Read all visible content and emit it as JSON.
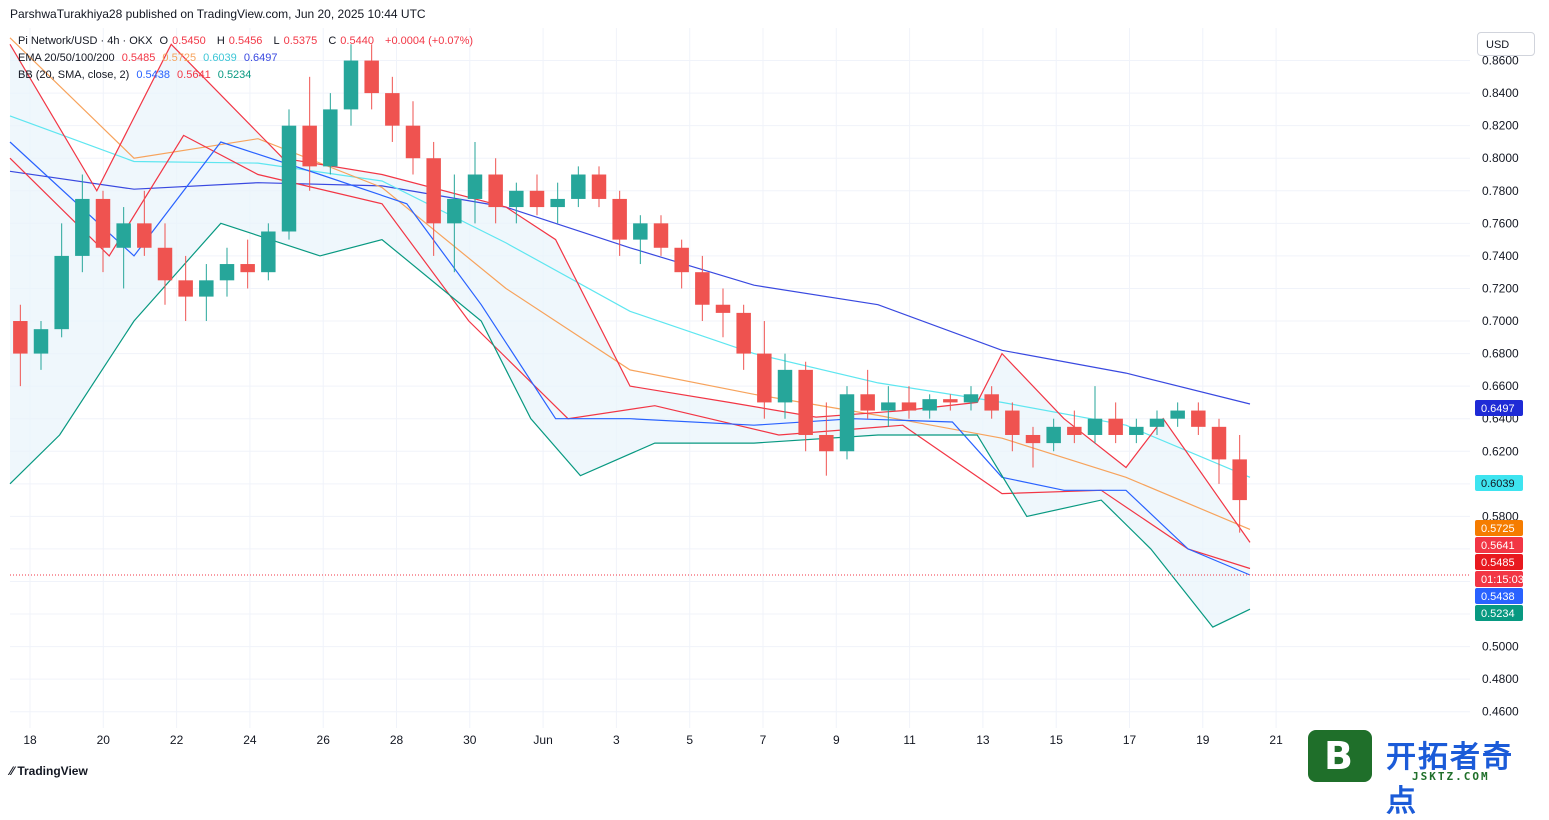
{
  "header": {
    "attribution": "ParshwaTurakhiya28 published on TradingView.com, Jun 20, 2025 10:44 UTC"
  },
  "legend": {
    "symbol": {
      "name": "Pi Network/USD · 4h · OKX",
      "o_label": "O",
      "o": "0.5450",
      "h_label": "H",
      "h": "0.5456",
      "l_label": "L",
      "l": "0.5375",
      "c_label": "C",
      "c": "0.5440",
      "change": "+0.0004 (+0.07%)"
    },
    "ema": {
      "label": "EMA 20/50/100/200",
      "v20": "0.5485",
      "v50": "0.5725",
      "v100": "0.6039",
      "v200": "0.6497"
    },
    "bb": {
      "label": "BB (20, SMA, close, 2)",
      "mid": "0.5438",
      "upper": "0.5641",
      "lower": "0.5234"
    }
  },
  "currency_label": "USD",
  "price_tags": {
    "ema200": "0.6497",
    "ema100": "0.6039",
    "ema50": "0.5725",
    "bb_upper": "0.5641",
    "ema20": "0.5485",
    "countdown": "01:15:03",
    "bb_mid": "0.5438",
    "bb_lower": "0.5234"
  },
  "footer": {
    "brand": "TradingView"
  },
  "watermark": {
    "title": "开拓者奇点",
    "sub": "JSKTZ.COM",
    "icon_letter": "B"
  },
  "colors": {
    "up": "#26a69a",
    "down": "#ef5350",
    "ema20": "#f23645",
    "ema50": "#f7a35c",
    "ema100": "#5ee6f0",
    "ema200": "#3949e0",
    "bb_mid": "#2962ff",
    "bb_upper": "#f23645",
    "bb_lower": "#089981",
    "bb_fill": "#e8f4fb"
  },
  "chart_data": {
    "type": "candlestick",
    "title": "Pi Network/USD · 4h · OKX",
    "y_ticks": [
      "0.8600",
      "0.8400",
      "0.8200",
      "0.8000",
      "0.7800",
      "0.7600",
      "0.7400",
      "0.7200",
      "0.7000",
      "0.6800",
      "0.6600",
      "0.6400",
      "0.6200",
      "0.5800",
      "0.5000",
      "0.4800",
      "0.4600"
    ],
    "x_ticks": [
      "18",
      "20",
      "22",
      "24",
      "26",
      "28",
      "30",
      "Jun",
      "3",
      "5",
      "7",
      "9",
      "11",
      "13",
      "15",
      "17",
      "19",
      "21"
    ],
    "ylim": [
      0.45,
      0.88
    ],
    "current_price": 0.544,
    "ohlc": [
      [
        0.7,
        0.71,
        0.66,
        0.68
      ],
      [
        0.68,
        0.7,
        0.67,
        0.695
      ],
      [
        0.695,
        0.76,
        0.69,
        0.74
      ],
      [
        0.74,
        0.79,
        0.73,
        0.775
      ],
      [
        0.775,
        0.78,
        0.73,
        0.745
      ],
      [
        0.745,
        0.77,
        0.72,
        0.76
      ],
      [
        0.76,
        0.78,
        0.74,
        0.745
      ],
      [
        0.745,
        0.76,
        0.71,
        0.725
      ],
      [
        0.725,
        0.74,
        0.7,
        0.715
      ],
      [
        0.715,
        0.735,
        0.7,
        0.725
      ],
      [
        0.725,
        0.745,
        0.715,
        0.735
      ],
      [
        0.735,
        0.75,
        0.72,
        0.73
      ],
      [
        0.73,
        0.76,
        0.725,
        0.755
      ],
      [
        0.755,
        0.83,
        0.75,
        0.82
      ],
      [
        0.82,
        0.85,
        0.78,
        0.795
      ],
      [
        0.795,
        0.84,
        0.79,
        0.83
      ],
      [
        0.83,
        0.87,
        0.82,
        0.86
      ],
      [
        0.86,
        0.87,
        0.83,
        0.84
      ],
      [
        0.84,
        0.85,
        0.81,
        0.82
      ],
      [
        0.82,
        0.835,
        0.79,
        0.8
      ],
      [
        0.8,
        0.81,
        0.74,
        0.76
      ],
      [
        0.76,
        0.79,
        0.73,
        0.775
      ],
      [
        0.775,
        0.81,
        0.76,
        0.79
      ],
      [
        0.79,
        0.8,
        0.76,
        0.77
      ],
      [
        0.77,
        0.785,
        0.76,
        0.78
      ],
      [
        0.78,
        0.79,
        0.765,
        0.77
      ],
      [
        0.77,
        0.785,
        0.76,
        0.775
      ],
      [
        0.775,
        0.795,
        0.77,
        0.79
      ],
      [
        0.79,
        0.795,
        0.77,
        0.775
      ],
      [
        0.775,
        0.78,
        0.74,
        0.75
      ],
      [
        0.75,
        0.765,
        0.735,
        0.76
      ],
      [
        0.76,
        0.765,
        0.74,
        0.745
      ],
      [
        0.745,
        0.75,
        0.72,
        0.73
      ],
      [
        0.73,
        0.74,
        0.7,
        0.71
      ],
      [
        0.71,
        0.72,
        0.69,
        0.705
      ],
      [
        0.705,
        0.71,
        0.67,
        0.68
      ],
      [
        0.68,
        0.7,
        0.64,
        0.65
      ],
      [
        0.65,
        0.68,
        0.64,
        0.67
      ],
      [
        0.67,
        0.675,
        0.62,
        0.63
      ],
      [
        0.63,
        0.65,
        0.605,
        0.62
      ],
      [
        0.62,
        0.66,
        0.615,
        0.655
      ],
      [
        0.655,
        0.67,
        0.64,
        0.645
      ],
      [
        0.645,
        0.66,
        0.635,
        0.65
      ],
      [
        0.65,
        0.66,
        0.64,
        0.645
      ],
      [
        0.645,
        0.655,
        0.64,
        0.652
      ],
      [
        0.652,
        0.655,
        0.645,
        0.65
      ],
      [
        0.65,
        0.66,
        0.645,
        0.655
      ],
      [
        0.655,
        0.66,
        0.64,
        0.645
      ],
      [
        0.645,
        0.65,
        0.62,
        0.63
      ],
      [
        0.63,
        0.635,
        0.61,
        0.625
      ],
      [
        0.625,
        0.64,
        0.62,
        0.635
      ],
      [
        0.635,
        0.645,
        0.625,
        0.63
      ],
      [
        0.63,
        0.66,
        0.625,
        0.64
      ],
      [
        0.64,
        0.65,
        0.625,
        0.63
      ],
      [
        0.63,
        0.64,
        0.625,
        0.635
      ],
      [
        0.635,
        0.645,
        0.63,
        0.64
      ],
      [
        0.64,
        0.65,
        0.635,
        0.645
      ],
      [
        0.645,
        0.65,
        0.63,
        0.635
      ],
      [
        0.635,
        0.64,
        0.6,
        0.615
      ],
      [
        0.615,
        0.63,
        0.57,
        0.59
      ]
    ]
  }
}
